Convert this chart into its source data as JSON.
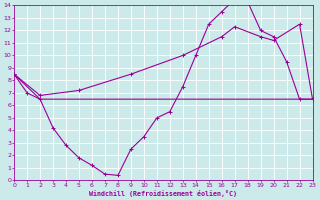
{
  "xlabel": "Windchill (Refroidissement éolien,°C)",
  "background_color": "#cceaea",
  "grid_color": "#ffffff",
  "line_color": "#990099",
  "xlim": [
    0,
    23
  ],
  "ylim": [
    0,
    14
  ],
  "x_ticks": [
    0,
    1,
    2,
    3,
    4,
    5,
    6,
    7,
    8,
    9,
    10,
    11,
    12,
    13,
    14,
    15,
    16,
    17,
    18,
    19,
    20,
    21,
    22,
    23
  ],
  "y_ticks": [
    0,
    1,
    2,
    3,
    4,
    5,
    6,
    7,
    8,
    9,
    10,
    11,
    12,
    13,
    14
  ],
  "line1_x": [
    0,
    1,
    2,
    3,
    4,
    5,
    6,
    7,
    8,
    9,
    10,
    11,
    12,
    13,
    14,
    15,
    16,
    17,
    18,
    19,
    20,
    21,
    22,
    23
  ],
  "line1_y": [
    8.5,
    7.0,
    6.5,
    4.2,
    2.8,
    1.8,
    1.2,
    0.5,
    0.4,
    2.5,
    3.5,
    5.0,
    5.5,
    7.5,
    10.0,
    12.5,
    13.5,
    14.5,
    14.3,
    12.0,
    11.5,
    9.5,
    6.5,
    6.5
  ],
  "line2_x": [
    0,
    2,
    22,
    23
  ],
  "line2_y": [
    8.5,
    6.5,
    6.5,
    6.5
  ],
  "line3_x": [
    0,
    2,
    5,
    9,
    13,
    16,
    17,
    19,
    20,
    22,
    23
  ],
  "line3_y": [
    8.5,
    6.8,
    7.2,
    8.5,
    10.0,
    11.5,
    12.3,
    11.5,
    11.2,
    12.5,
    6.5
  ],
  "marker_style": "+",
  "marker_size": 3.0,
  "linewidth": 0.8,
  "tick_labelsize": 4.5,
  "xlabel_fontsize": 4.8
}
